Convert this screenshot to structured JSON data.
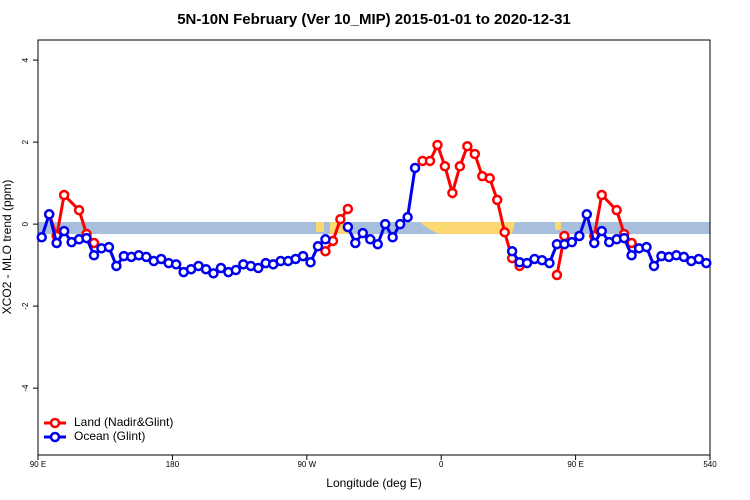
{
  "chart_data": {
    "type": "line",
    "title": "5N-10N February (Ver 10_MIP)   2015-01-01 to 2020-12-31",
    "x_label": "Longitude (deg E)",
    "y_label": "XCO2 - MLO trend (ppm)",
    "xlim": [
      90,
      540
    ],
    "xticks": [
      {
        "value": 90,
        "label": "90 E"
      },
      180,
      {
        "value": 270,
        "label": "90 W"
      },
      {
        "value": 360,
        "label": "0"
      },
      {
        "value": 450,
        "label": "90 E"
      },
      540
    ],
    "ylim": [
      -5.63,
      4.49
    ],
    "yticks": [
      4,
      2,
      0,
      -2,
      -4
    ],
    "legend": "bottom-left",
    "series": [
      {
        "name": "Land (Nadir&Glint)",
        "color": "#ff0000",
        "x": [
          97.5,
          102.5,
          107.5,
          117.5,
          122.5,
          127.5,
          null,
          282.5,
          287.5,
          292.5,
          297.5,
          null,
          347.5,
          352.5,
          357.5,
          362.5,
          367.5,
          372.5,
          377.5,
          382.5,
          387.5,
          392.5,
          397.5,
          402.5,
          407.5,
          412.5,
          null,
          437.5,
          442.5,
          null,
          462.5,
          467.5,
          477.5,
          482.5,
          487.5
        ],
        "values": [
          0.24,
          -0.29,
          0.71,
          0.34,
          -0.24,
          -0.46,
          null,
          -0.66,
          -0.41,
          0.12,
          0.37,
          null,
          1.54,
          1.54,
          1.93,
          1.41,
          0.76,
          1.41,
          1.9,
          1.71,
          1.17,
          1.12,
          0.59,
          -0.2,
          -0.83,
          -1.02,
          null,
          -1.24,
          -0.29,
          null,
          -0.29,
          0.71,
          0.34,
          -0.24,
          -0.46
        ]
      },
      {
        "name": "Ocean (Glint)",
        "color": "#0000ee",
        "x": [
          92.5,
          97.5,
          102.5,
          107.5,
          112.5,
          117.5,
          122.5,
          127.5,
          132.5,
          137.5,
          142.5,
          147.5,
          152.5,
          157.5,
          162.5,
          167.5,
          172.5,
          177.5,
          182.5,
          187.5,
          192.5,
          197.5,
          202.5,
          207.5,
          212.5,
          217.5,
          222.5,
          227.5,
          232.5,
          237.5,
          242.5,
          247.5,
          252.5,
          257.5,
          262.5,
          267.5,
          272.5,
          277.5,
          282.5,
          null,
          297.5,
          302.5,
          307.5,
          312.5,
          317.5,
          322.5,
          327.5,
          332.5,
          337.5,
          342.5,
          null,
          407.5,
          412.5,
          417.5,
          422.5,
          427.5,
          432.5,
          437.5,
          442.5,
          447.5,
          452.5,
          457.5,
          462.5,
          467.5,
          472.5,
          477.5,
          482.5,
          487.5,
          492.5,
          497.5,
          502.5,
          507.5,
          512.5,
          517.5,
          522.5,
          527.5,
          532.5,
          537.5
        ],
        "values": [
          -0.32,
          0.24,
          -0.46,
          -0.17,
          -0.44,
          -0.37,
          -0.34,
          -0.76,
          -0.59,
          -0.56,
          -1.02,
          -0.78,
          -0.8,
          -0.76,
          -0.8,
          -0.9,
          -0.85,
          -0.95,
          -0.98,
          -1.17,
          -1.1,
          -1.02,
          -1.1,
          -1.2,
          -1.07,
          -1.17,
          -1.12,
          -0.98,
          -1.02,
          -1.07,
          -0.95,
          -0.98,
          -0.9,
          -0.9,
          -0.85,
          -0.78,
          -0.93,
          -0.54,
          -0.37,
          null,
          -0.07,
          -0.46,
          -0.22,
          -0.37,
          -0.49,
          0,
          -0.32,
          0,
          0.17,
          1.37,
          null,
          -0.66,
          -0.93,
          -0.95,
          -0.85,
          -0.88,
          -0.95,
          -0.49,
          -0.49,
          -0.44,
          -0.29,
          0.24,
          -0.46,
          -0.17,
          -0.44,
          -0.37,
          -0.34,
          -0.76,
          -0.59,
          -0.56,
          -1.02,
          -0.78,
          -0.8,
          -0.76,
          -0.8,
          -0.9,
          -0.85,
          -0.95
        ]
      }
    ]
  }
}
